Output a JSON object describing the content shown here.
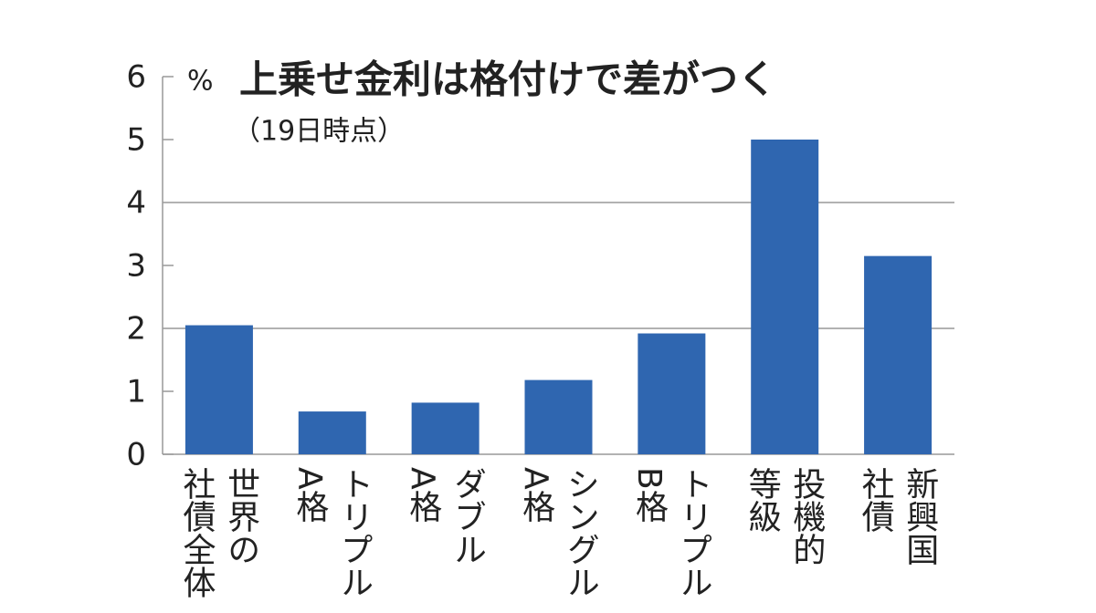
{
  "chart_data": {
    "type": "bar",
    "title": "上乗せ金利は格付けで差がつく",
    "subtitle": "（19日時点）",
    "y_unit": "%",
    "categories": [
      "世界の\n社債全体",
      "トリプル\nA格",
      "ダブル\nA格",
      "シングル\nA格",
      "トリプル\nB格",
      "投機的\n等級",
      "新興国\n社債"
    ],
    "values": [
      2.05,
      0.68,
      0.82,
      1.18,
      1.92,
      5.0,
      3.15
    ],
    "color": "#2f66b0",
    "ylim": [
      0,
      6
    ],
    "yticks": [
      0,
      1,
      2,
      3,
      4,
      5,
      6
    ],
    "grid": true
  }
}
